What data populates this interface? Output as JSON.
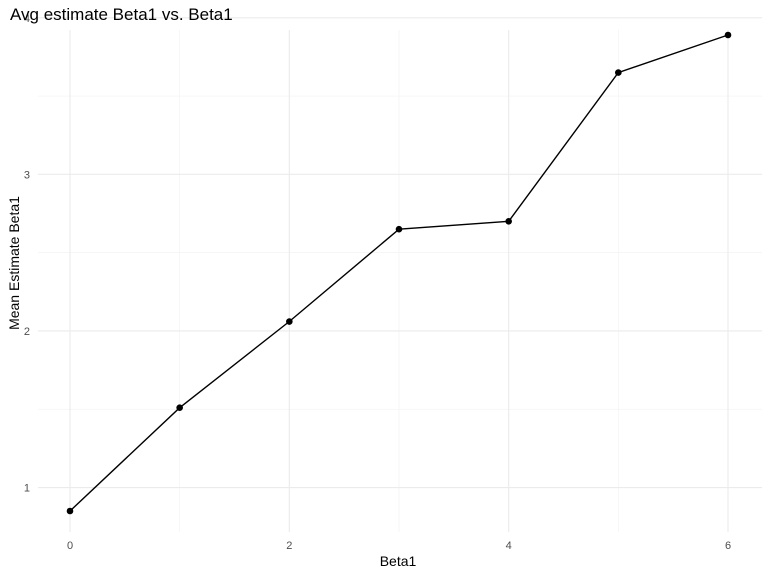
{
  "chart_data": {
    "type": "line",
    "title": "Avg estimate Beta1 vs. Beta1",
    "xlabel": "Beta1",
    "ylabel": "Mean Estimate Beta1",
    "xlim": [
      0,
      6
    ],
    "ylim": [
      0.85,
      3.89
    ],
    "x_ticks": [
      0,
      2,
      4,
      6
    ],
    "y_ticks": [
      1,
      2,
      3,
      4
    ],
    "x_minor": [
      1,
      3,
      5
    ],
    "y_minor": [
      1.5,
      2.5,
      3.5
    ],
    "grid": true,
    "legend": "none",
    "series": [
      {
        "x": [
          0,
          1,
          2,
          3,
          4,
          5,
          6
        ],
        "values": [
          0.85,
          1.51,
          2.06,
          2.65,
          2.7,
          3.65,
          3.89
        ]
      }
    ],
    "colors": {
      "line": "#000000",
      "point": "#000000",
      "grid": "#ebebeb"
    }
  }
}
